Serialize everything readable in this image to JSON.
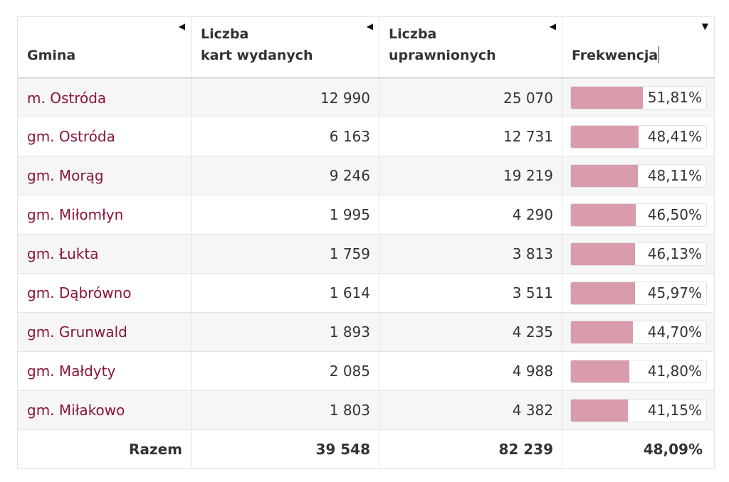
{
  "table": {
    "headers": {
      "gmina": "Gmina",
      "karty": [
        "Liczba",
        "kart wydanych"
      ],
      "uprawnionych": [
        "Liczba",
        "uprawnionych"
      ],
      "frekwencja": "Frekwencja"
    },
    "sort_icons": {
      "gmina": "sort-left-icon",
      "karty": "sort-left-icon",
      "uprawnionych": "sort-left-icon",
      "frekwencja": "sort-down-icon"
    },
    "rows": [
      {
        "name": "m. Ostróda",
        "karty": "12 990",
        "uprawnieni": "25 070",
        "frekwencja": "51,81%",
        "pct": 51.81
      },
      {
        "name": "gm. Ostróda",
        "karty": "6 163",
        "uprawnieni": "12 731",
        "frekwencja": "48,41%",
        "pct": 48.41
      },
      {
        "name": "gm. Morąg",
        "karty": "9 246",
        "uprawnieni": "19 219",
        "frekwencja": "48,11%",
        "pct": 48.11
      },
      {
        "name": "gm. Miłomłyn",
        "karty": "1 995",
        "uprawnieni": "4 290",
        "frekwencja": "46,50%",
        "pct": 46.5
      },
      {
        "name": "gm. Łukta",
        "karty": "1 759",
        "uprawnieni": "3 813",
        "frekwencja": "46,13%",
        "pct": 46.13
      },
      {
        "name": "gm. Dąbrówno",
        "karty": "1 614",
        "uprawnieni": "3 511",
        "frekwencja": "45,97%",
        "pct": 45.97
      },
      {
        "name": "gm. Grunwald",
        "karty": "1 893",
        "uprawnieni": "4 235",
        "frekwencja": "44,70%",
        "pct": 44.7
      },
      {
        "name": "gm. Małdyty",
        "karty": "2 085",
        "uprawnieni": "4 988",
        "frekwencja": "41,80%",
        "pct": 41.8
      },
      {
        "name": "gm. Miłakowo",
        "karty": "1 803",
        "uprawnieni": "4 382",
        "frekwencja": "41,15%",
        "pct": 41.15
      }
    ],
    "footer": {
      "label": "Razem",
      "karty": "39 548",
      "uprawnieni": "82 239",
      "frekwencja": "48,09%"
    }
  },
  "colors": {
    "name_link": "#8a1538",
    "bar_fill": "#d99cab",
    "row_stripe": "#f6f6f6"
  }
}
